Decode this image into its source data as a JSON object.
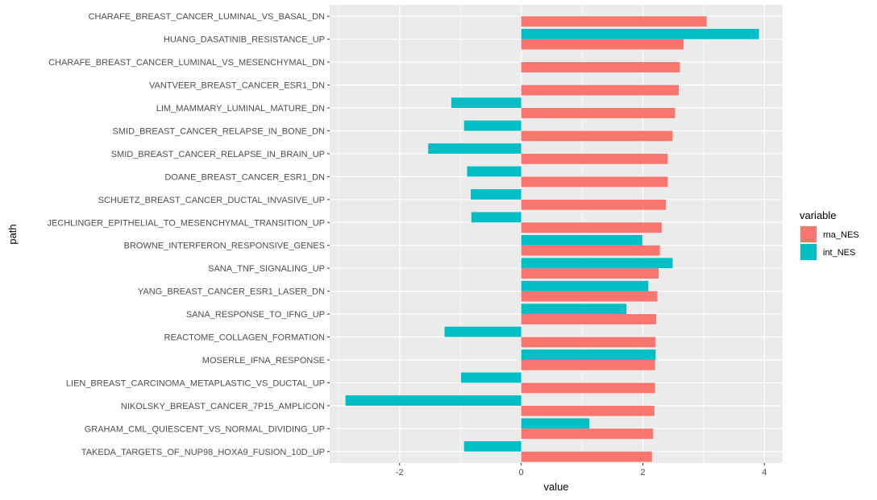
{
  "chart_data": {
    "type": "bar",
    "orientation": "horizontal",
    "xlabel": "value",
    "ylabel": "path",
    "xlim": [
      -3.15,
      4.3
    ],
    "xticks": [
      -2,
      0,
      2,
      4
    ],
    "xtick_labels": [
      "-2",
      "0",
      "2",
      "4"
    ],
    "grid": true,
    "legend": {
      "title": "variable",
      "position": "right",
      "entries": [
        {
          "name": "rna_NES",
          "color": "#F8766D"
        },
        {
          "name": "int_NES",
          "color": "#00BFC4"
        }
      ]
    },
    "categories": [
      "CHARAFE_BREAST_CANCER_LUMINAL_VS_BASAL_DN",
      "HUANG_DASATINIB_RESISTANCE_UP",
      "CHARAFE_BREAST_CANCER_LUMINAL_VS_MESENCHYMAL_DN",
      "VANTVEER_BREAST_CANCER_ESR1_DN",
      "LIM_MAMMARY_LUMINAL_MATURE_DN",
      "SMID_BREAST_CANCER_RELAPSE_IN_BONE_DN",
      "SMID_BREAST_CANCER_RELAPSE_IN_BRAIN_UP",
      "DOANE_BREAST_CANCER_ESR1_DN",
      "SCHUETZ_BREAST_CANCER_DUCTAL_INVASIVE_UP",
      "JECHLINGER_EPITHELIAL_TO_MESENCHYMAL_TRANSITION_UP",
      "BROWNE_INTERFERON_RESPONSIVE_GENES",
      "SANA_TNF_SIGNALING_UP",
      "YANG_BREAST_CANCER_ESR1_LASER_DN",
      "SANA_RESPONSE_TO_IFNG_UP",
      "REACTOME_COLLAGEN_FORMATION",
      "MOSERLE_IFNA_RESPONSE",
      "LIEN_BREAST_CARCINOMA_METAPLASTIC_VS_DUCTAL_UP",
      "NIKOLSKY_BREAST_CANCER_7P15_AMPLICON",
      "GRAHAM_CML_QUIESCENT_VS_NORMAL_DIVIDING_UP",
      "TAKEDA_TARGETS_OF_NUP98_HOXA9_FUSION_10D_UP"
    ],
    "series": [
      {
        "name": "rna_NES",
        "values": [
          3.05,
          2.67,
          2.61,
          2.59,
          2.53,
          2.49,
          2.41,
          2.41,
          2.38,
          2.31,
          2.28,
          2.26,
          2.24,
          2.22,
          2.21,
          2.2,
          2.2,
          2.19,
          2.17,
          2.15
        ]
      },
      {
        "name": "int_NES",
        "values": [
          null,
          3.91,
          null,
          null,
          -1.15,
          -0.94,
          -1.53,
          -0.89,
          -0.83,
          -0.82,
          1.99,
          2.49,
          2.09,
          1.73,
          -1.26,
          2.21,
          -0.99,
          -2.89,
          1.12,
          -0.94
        ]
      }
    ]
  }
}
